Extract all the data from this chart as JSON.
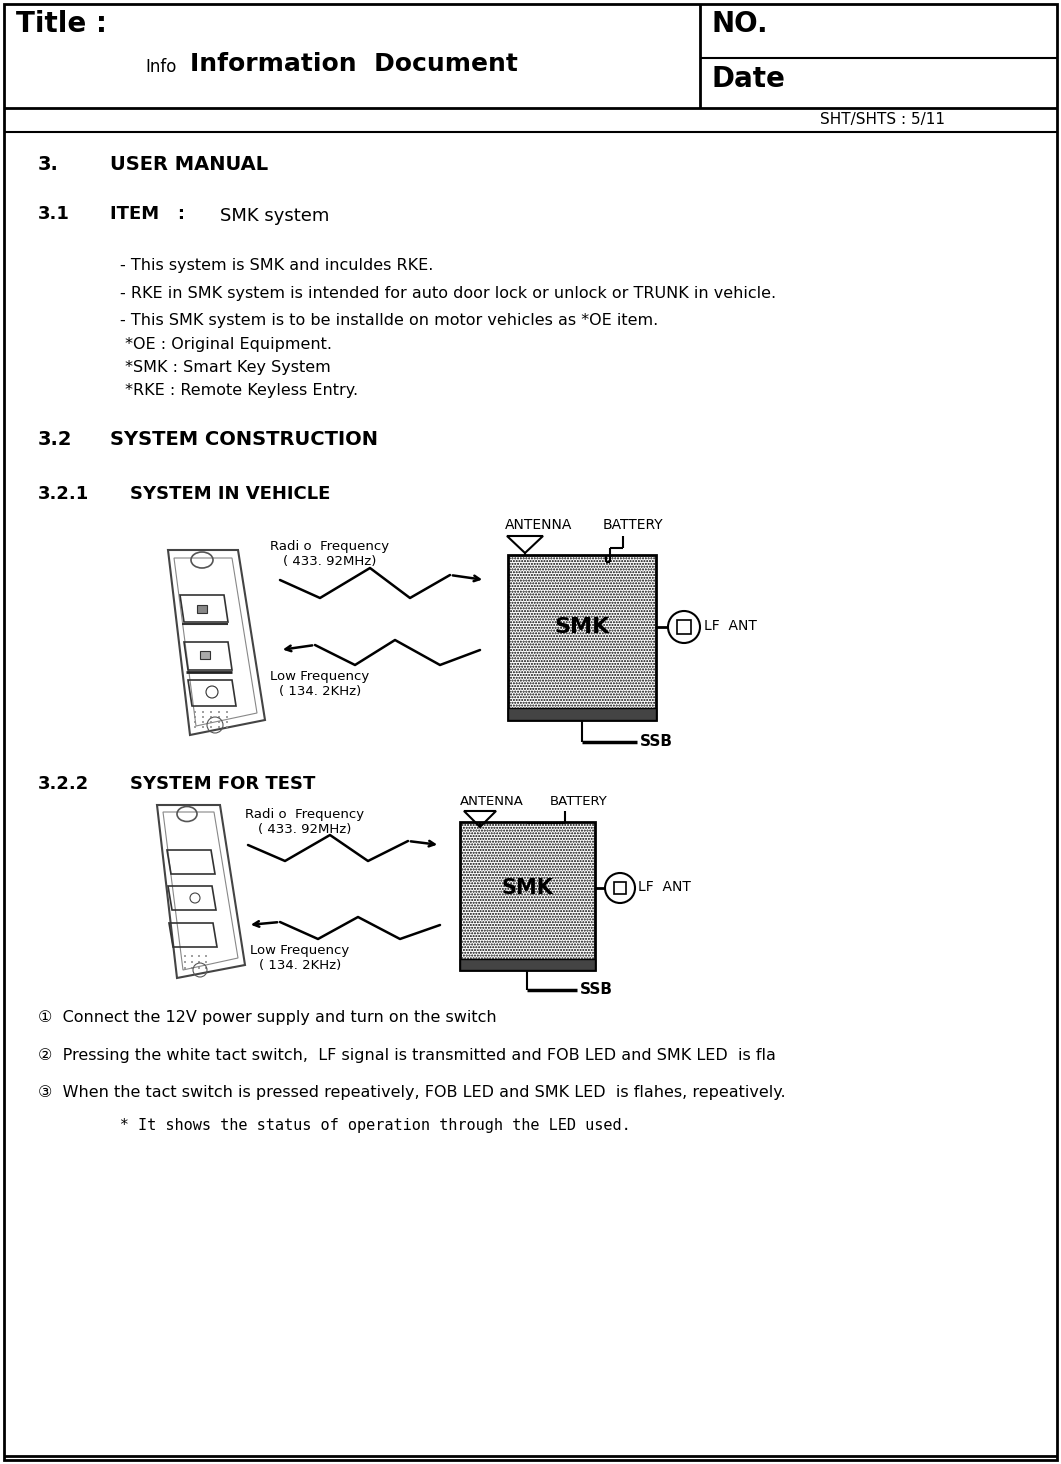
{
  "bg_color": "#ffffff",
  "header": {
    "title_left": "Title :",
    "title_sub_small": "Info",
    "title_sub_big": "Information  Document",
    "title_right_top": "NO.",
    "title_right_bottom": "Date",
    "sht": "SHT/SHTS : 5/11"
  },
  "bullets": [
    "- This system is SMK and inculdes RKE.",
    "- RKE in SMK system is intended for auto door lock or unlock or TRUNK in vehicle.",
    "- This SMK system is to be installde on motor vehicles as *OE item.",
    " *OE : Original Equipment.",
    " *SMK : Smart Key System",
    " *RKE : Remote Keyless Entry."
  ],
  "rf_label": "Radi o  Frequency\n( 433. 92MHz)",
  "lf_label": "Low Frequency\n( 134. 2KHz)",
  "antenna_label": "ANTENNA",
  "battery_label": "BATTERY",
  "lf_ant_label": "LF  ANT",
  "ssb_label": "SSB",
  "smk_label": "SMK",
  "steps": [
    "①  Connect the 12V power supply and turn on the switch",
    "②  Pressing the white tact switch,  LF signal is transmitted and FOB LED and SMK LED  is fla",
    "③  When the tact switch is pressed repeatively, FOB LED and SMK LED  is flahes, repeatively.",
    "      * It shows the status of operation through the LED used."
  ]
}
